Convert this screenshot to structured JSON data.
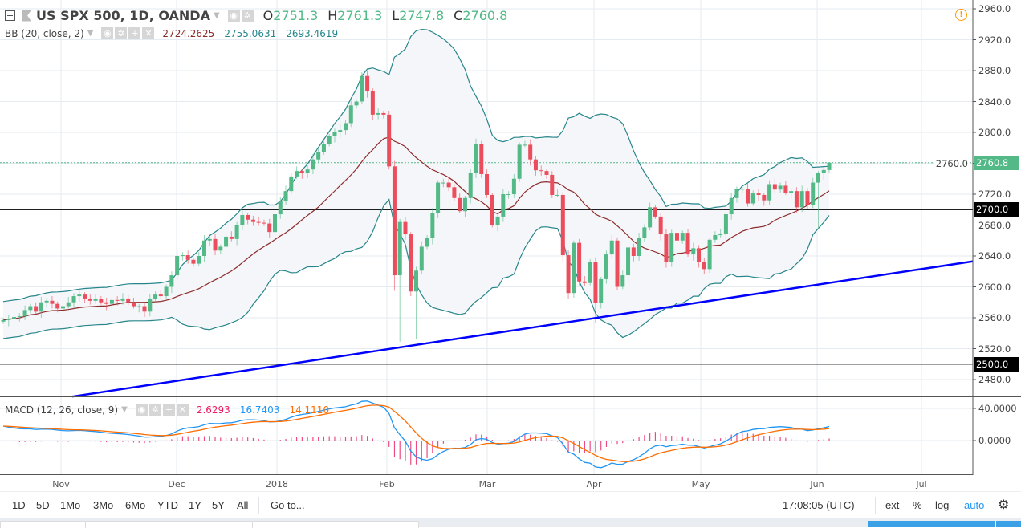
{
  "header": {
    "symbol": "US SPX 500, 1D, OANDA",
    "o_label": "O",
    "o": "2751.3",
    "h_label": "H",
    "h": "2761.3",
    "l_label": "L",
    "l": "2747.8",
    "c_label": "C",
    "c": "2760.8"
  },
  "bb": {
    "label": "BB (20, close, 2)",
    "basis": "2724.2625",
    "upper": "2755.0631",
    "lower": "2693.4619"
  },
  "macd": {
    "label": "MACD (12, 26, close, 9)",
    "hist": "2.6293",
    "macd": "16.7403",
    "signal": "14.1110"
  },
  "colors": {
    "up": "#53b987",
    "down": "#eb4d5c",
    "bb_band": "#26868b",
    "bb_basis": "#8e2b2b",
    "macd": "#2196f3",
    "signal": "#ff6d00",
    "hist": "#e91e63",
    "trendline": "#0000ff",
    "last_price": "#53b987",
    "accent": "#2196f3",
    "warning": "#ff9800"
  },
  "icons": {
    "collapse": "minus-square-icon",
    "flag": "flag-icon",
    "eye": "eye-icon",
    "settings": "gear-icon",
    "add": "plus-icon",
    "remove": "close-icon",
    "warning": "exclamation-circle-icon"
  },
  "chart_data": {
    "type": "candlestick",
    "title": "US SPX 500, 1D, OANDA",
    "x_ticks": [
      "Nov",
      "Dec",
      "2018",
      "Feb",
      "Mar",
      "Apr",
      "May",
      "Jun",
      "Jul"
    ],
    "y_ticks": [
      "2960.0",
      "2920.0",
      "2880.0",
      "2840.0",
      "2800.0",
      "2760.0",
      "2720.0",
      "2680.0",
      "2640.0",
      "2600.0",
      "2560.0",
      "2520.0",
      "2480.0"
    ],
    "ylim": [
      2460,
      2970
    ],
    "macd_ticks": [
      "40.0000",
      "0.0000"
    ],
    "macd_ylim": [
      -42,
      55
    ],
    "close": [
      2557,
      2559,
      2561,
      2562,
      2570,
      2575,
      2568,
      2580,
      2582,
      2578,
      2572,
      2575,
      2580,
      2588,
      2590,
      2585,
      2582,
      2584,
      2580,
      2578,
      2583,
      2582,
      2585,
      2580,
      2575,
      2575,
      2568,
      2584,
      2590,
      2588,
      2600,
      2615,
      2640,
      2641,
      2635,
      2630,
      2640,
      2660,
      2662,
      2647,
      2652,
      2665,
      2662,
      2680,
      2693,
      2687,
      2684,
      2683,
      2682,
      2671,
      2694,
      2711,
      2724,
      2743,
      2750,
      2748,
      2752,
      2765,
      2775,
      2785,
      2795,
      2800,
      2803,
      2812,
      2835,
      2840,
      2873,
      2853,
      2823,
      2825,
      2823,
      2756,
      2615,
      2684,
      2668,
      2594,
      2621,
      2652,
      2663,
      2696,
      2735,
      2735,
      2729,
      2715,
      2698,
      2715,
      2747,
      2785,
      2746,
      2719,
      2680,
      2691,
      2720,
      2720,
      2740,
      2784,
      2784,
      2765,
      2751,
      2750,
      2745,
      2719,
      2719,
      2641,
      2592,
      2657,
      2607,
      2605,
      2632,
      2579,
      2610,
      2642,
      2660,
      2600,
      2615,
      2651,
      2640,
      2663,
      2677,
      2703,
      2691,
      2668,
      2632,
      2670,
      2660,
      2670,
      2642,
      2650,
      2632,
      2623,
      2661,
      2667,
      2668,
      2694,
      2715,
      2727,
      2727,
      2708,
      2721,
      2719,
      2712,
      2733,
      2726,
      2731,
      2722,
      2724,
      2703,
      2724,
      2706,
      2735,
      2747,
      2751.3,
      2760.8
    ],
    "first_open": 2555,
    "last_bar": {
      "open": 2751.3,
      "high": 2761.3,
      "low": 2747.8,
      "close": 2760.8
    },
    "low_overrides": {
      "72": 2595,
      "73": 2529,
      "76": 2533,
      "109": 2553,
      "150": 2675
    },
    "last_price": "2760.8",
    "horizontal_levels": [
      {
        "price": 2700,
        "label": "2700.0"
      },
      {
        "price": 2500,
        "label": "2500.0"
      }
    ],
    "trendline": {
      "from": {
        "bar": 12.7,
        "price": 2458
      },
      "to": {
        "bar": 178.4,
        "price": 2633
      }
    },
    "indicators": [
      "Bollinger Bands (20, 2)",
      "MACD (12, 26, 9)"
    ],
    "grid": true
  },
  "toolbar": {
    "ranges": [
      "1D",
      "5D",
      "1Mo",
      "3Mo",
      "6Mo",
      "YTD",
      "1Y",
      "5Y",
      "All"
    ],
    "goto": "Go to...",
    "time": "17:08:05 (UTC)",
    "ext": "ext",
    "percent": "%",
    "log": "log",
    "auto": "auto"
  }
}
